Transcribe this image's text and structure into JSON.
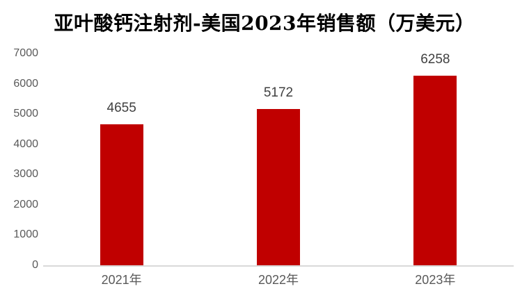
{
  "chart_data": {
    "type": "bar",
    "title": "亚叶酸钙注射剂-美国2023年销售额（万美元）",
    "categories": [
      "2021年",
      "2022年",
      "2023年"
    ],
    "values": [
      4655,
      5172,
      6258
    ],
    "value_labels": [
      "4655",
      "5172",
      "6258"
    ],
    "xlabel": "",
    "ylabel": "",
    "ylim": [
      0,
      7000
    ],
    "yticks": [
      0,
      1000,
      2000,
      3000,
      4000,
      5000,
      6000,
      7000
    ],
    "grid": false,
    "legend": "none",
    "colors": {
      "bar": "#C00000",
      "value_label": "#404040",
      "axis_text": "#595959",
      "axis_line": "#D9D9D9",
      "title": "#000000",
      "background": "#FFFFFF"
    }
  }
}
